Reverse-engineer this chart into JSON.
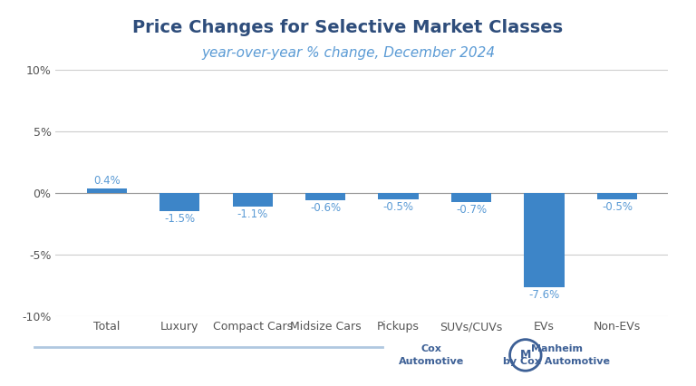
{
  "title": "Price Changes for Selective Market Classes",
  "subtitle": "year-over-year % change, December 2024",
  "categories": [
    "Total",
    "Luxury",
    "Compact Cars",
    "Midsize Cars",
    "Pickups",
    "SUVs/CUVs",
    "EVs",
    "Non-EVs"
  ],
  "values": [
    0.4,
    -1.5,
    -1.1,
    -0.6,
    -0.5,
    -0.7,
    -7.6,
    -0.5
  ],
  "bar_color": "#3d85c8",
  "title_color": "#2e4d7b",
  "subtitle_color": "#5b9bd5",
  "label_color": "#5b9bd5",
  "axis_label_color": "#555555",
  "ylim": [
    -10,
    10
  ],
  "yticks": [
    -10,
    -5,
    0,
    5,
    10
  ],
  "background_color": "#ffffff",
  "grid_color": "#cccccc",
  "title_fontsize": 14,
  "subtitle_fontsize": 11,
  "tick_fontsize": 9,
  "label_fontsize": 8.5
}
